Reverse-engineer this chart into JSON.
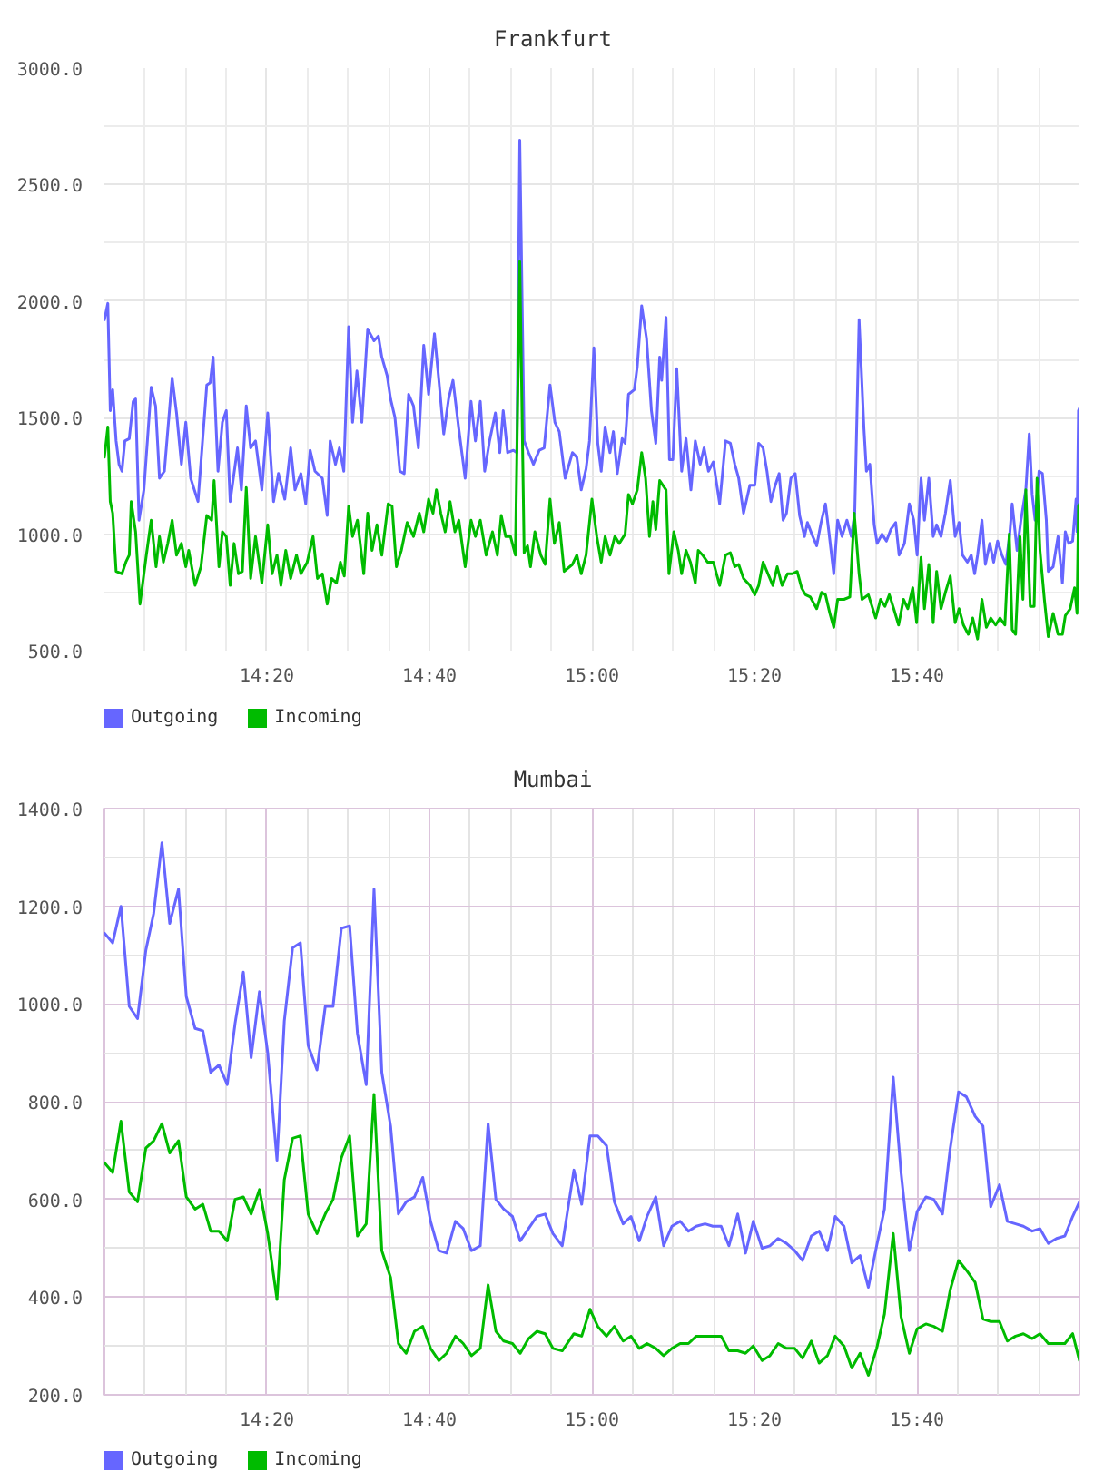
{
  "chart_data": [
    {
      "type": "line",
      "title": "Frankfurt",
      "xlim": [
        14,
        16
      ],
      "ylim": [
        500,
        3000
      ],
      "grid": true,
      "legend": "bottom left",
      "xticks": [
        {
          "value": 14.0833,
          "label": null
        },
        {
          "value": 14.1667,
          "label": null
        },
        {
          "value": 14.25,
          "label": null
        },
        {
          "value": 14.3333,
          "label": "14:20"
        },
        {
          "value": 14.4167,
          "label": null
        },
        {
          "value": 14.5,
          "label": null
        },
        {
          "value": 14.5833,
          "label": null
        },
        {
          "value": 14.6667,
          "label": "14:40"
        },
        {
          "value": 14.75,
          "label": null
        },
        {
          "value": 14.8333,
          "label": null
        },
        {
          "value": 14.9167,
          "label": null
        },
        {
          "value": 15,
          "label": "15:00"
        },
        {
          "value": 15.0833,
          "label": null
        },
        {
          "value": 15.1667,
          "label": null
        },
        {
          "value": 15.25,
          "label": null
        },
        {
          "value": 15.3333,
          "label": "15:20"
        },
        {
          "value": 15.4167,
          "label": null
        },
        {
          "value": 15.5,
          "label": null
        },
        {
          "value": 15.5833,
          "label": null
        },
        {
          "value": 15.6667,
          "label": "15:40"
        },
        {
          "value": 15.75,
          "label": null
        },
        {
          "value": 15.8333,
          "label": null
        },
        {
          "value": 15.9167,
          "label": null
        }
      ],
      "yticks": [
        {
          "value": 500,
          "label": "500.0"
        },
        {
          "value": 750,
          "label": null
        },
        {
          "value": 1000,
          "label": "1000.0"
        },
        {
          "value": 1250,
          "label": null
        },
        {
          "value": 1500,
          "label": "1500.0"
        },
        {
          "value": 1750,
          "label": null
        },
        {
          "value": 2000,
          "label": "2000.0"
        },
        {
          "value": 2250,
          "label": null
        },
        {
          "value": 2500,
          "label": "2500.0"
        },
        {
          "value": 2750,
          "label": null
        },
        {
          "value": 3000,
          "label": "3000.0"
        }
      ],
      "series": [
        {
          "name": "Outgoing",
          "color": "#6666ff",
          "x": [
            14.0,
            14.007,
            14.012,
            14.017,
            14.024,
            14.03,
            14.036,
            14.042,
            14.051,
            14.059,
            14.064,
            14.071,
            14.081,
            14.096,
            14.105,
            14.113,
            14.123,
            14.139,
            14.148,
            14.158,
            14.167,
            14.177,
            14.192,
            14.21,
            14.217,
            14.223,
            14.233,
            14.242,
            14.25,
            14.258,
            14.273,
            14.281,
            14.291,
            14.3,
            14.31,
            14.323,
            14.335,
            14.347,
            14.357,
            14.37,
            14.382,
            14.391,
            14.403,
            14.413,
            14.422,
            14.432,
            14.447,
            14.457,
            14.463,
            14.474,
            14.482,
            14.491,
            14.501,
            14.509,
            14.518,
            14.528,
            14.54,
            14.553,
            14.562,
            14.569,
            14.58,
            14.587,
            14.596,
            14.606,
            14.615,
            14.624,
            14.634,
            14.644,
            14.655,
            14.665,
            14.677,
            14.686,
            14.696,
            14.706,
            14.715,
            14.727,
            14.74,
            14.752,
            14.761,
            14.771,
            14.78,
            14.79,
            14.802,
            14.811,
            14.818,
            14.827,
            14.839,
            14.846,
            14.852,
            14.861,
            14.87,
            14.88,
            14.892,
            14.902,
            14.914,
            14.924,
            14.933,
            14.945,
            14.96,
            14.969,
            14.978,
            14.988,
            14.995,
            15.004,
            15.012,
            15.019,
            15.027,
            15.037,
            15.044,
            15.052,
            15.062,
            15.068,
            15.075,
            15.087,
            15.093,
            15.102,
            15.112,
            15.122,
            15.131,
            15.139,
            15.143,
            15.152,
            15.159,
            15.166,
            15.174,
            15.184,
            15.193,
            15.203,
            15.212,
            15.222,
            15.23,
            15.239,
            15.249,
            15.262,
            15.274,
            15.284,
            15.293,
            15.301,
            15.311,
            15.324,
            15.334,
            15.342,
            15.351,
            15.359,
            15.367,
            15.376,
            15.384,
            15.392,
            15.399,
            15.408,
            15.417,
            15.426,
            15.436,
            15.442,
            15.451,
            15.461,
            15.47,
            15.479,
            15.486,
            15.496,
            15.504,
            15.513,
            15.523,
            15.532,
            15.539,
            15.548,
            15.558,
            15.563,
            15.57,
            15.579,
            15.585,
            15.595,
            15.604,
            15.613,
            15.623,
            15.63,
            15.641,
            15.651,
            15.66,
            15.667,
            15.675,
            15.682,
            15.691,
            15.7,
            15.707,
            15.716,
            15.725,
            15.735,
            15.745,
            15.753,
            15.76,
            15.77,
            15.778,
            15.785,
            15.791,
            15.8,
            15.807,
            15.816,
            15.824,
            15.832,
            15.841,
            15.849,
            15.857,
            15.862,
            15.872,
            15.88,
            15.89,
            15.897,
            15.903,
            15.909,
            15.917,
            15.924,
            15.932,
            15.936,
            15.946,
            15.956,
            15.965,
            15.971,
            15.978,
            15.986,
            15.993,
            15.995,
            15.998,
            16.0
          ],
          "values": [
            1920,
            1990,
            1530,
            1620,
            1400,
            1300,
            1270,
            1400,
            1410,
            1570,
            1580,
            1060,
            1190,
            1630,
            1550,
            1240,
            1270,
            1670,
            1520,
            1300,
            1480,
            1240,
            1140,
            1640,
            1650,
            1760,
            1270,
            1480,
            1530,
            1140,
            1370,
            1190,
            1550,
            1370,
            1400,
            1190,
            1520,
            1140,
            1260,
            1150,
            1370,
            1190,
            1260,
            1130,
            1360,
            1270,
            1240,
            1080,
            1400,
            1300,
            1370,
            1270,
            1890,
            1480,
            1700,
            1480,
            1880,
            1830,
            1850,
            1760,
            1680,
            1580,
            1500,
            1270,
            1260,
            1600,
            1550,
            1370,
            1810,
            1600,
            1860,
            1660,
            1430,
            1580,
            1660,
            1450,
            1240,
            1570,
            1400,
            1570,
            1270,
            1400,
            1520,
            1350,
            1530,
            1350,
            1360,
            1350,
            2690,
            1400,
            1350,
            1300,
            1360,
            1370,
            1640,
            1480,
            1440,
            1240,
            1350,
            1330,
            1190,
            1280,
            1400,
            1800,
            1390,
            1270,
            1460,
            1350,
            1440,
            1260,
            1410,
            1390,
            1600,
            1620,
            1720,
            1980,
            1840,
            1530,
            1390,
            1760,
            1660,
            1930,
            1320,
            1320,
            1710,
            1270,
            1410,
            1190,
            1400,
            1300,
            1370,
            1270,
            1310,
            1130,
            1400,
            1390,
            1300,
            1240,
            1090,
            1210,
            1210,
            1390,
            1370,
            1270,
            1140,
            1210,
            1260,
            1060,
            1090,
            1240,
            1260,
            1080,
            990,
            1050,
            1000,
            950,
            1050,
            1130,
            1010,
            830,
            1060,
            990,
            1060,
            990,
            1090,
            1920,
            1450,
            1270,
            1300,
            1040,
            960,
            1000,
            970,
            1020,
            1050,
            910,
            960,
            1130,
            1060,
            910,
            1240,
            1060,
            1240,
            990,
            1040,
            990,
            1090,
            1230,
            990,
            1050,
            910,
            880,
            910,
            830,
            910,
            1060,
            870,
            960,
            880,
            970,
            910,
            870,
            1000,
            1130,
            930,
            1060,
            1190,
            1430,
            1170,
            1060,
            1270,
            1260,
            1060,
            840,
            860,
            990,
            790,
            1010,
            960,
            970,
            1150,
            1010,
            1530,
            1540
          ]
        },
        {
          "name": "Incoming",
          "color": "#00bb00",
          "x": [
            14.0,
            14.007,
            14.012,
            14.017,
            14.024,
            14.036,
            14.044,
            14.051,
            14.055,
            14.064,
            14.073,
            14.086,
            14.096,
            14.106,
            14.113,
            14.121,
            14.13,
            14.139,
            14.148,
            14.158,
            14.167,
            14.173,
            14.186,
            14.198,
            14.21,
            14.22,
            14.225,
            14.235,
            14.242,
            14.25,
            14.258,
            14.266,
            14.275,
            14.283,
            14.291,
            14.3,
            14.31,
            14.323,
            14.335,
            14.344,
            14.354,
            14.362,
            14.372,
            14.382,
            14.394,
            14.403,
            14.416,
            14.428,
            14.437,
            14.447,
            14.457,
            14.466,
            14.476,
            14.484,
            14.492,
            14.501,
            14.509,
            14.519,
            14.532,
            14.54,
            14.549,
            14.559,
            14.569,
            14.582,
            14.59,
            14.599,
            14.609,
            14.621,
            14.634,
            14.646,
            14.655,
            14.665,
            14.674,
            14.681,
            14.69,
            14.699,
            14.709,
            14.719,
            14.727,
            14.74,
            14.752,
            14.761,
            14.771,
            14.783,
            14.796,
            14.806,
            14.814,
            14.823,
            14.833,
            14.843,
            14.852,
            14.861,
            14.868,
            14.874,
            14.883,
            14.895,
            14.904,
            14.914,
            14.923,
            14.933,
            14.943,
            14.96,
            14.969,
            14.978,
            14.988,
            15.0,
            15.01,
            15.019,
            15.027,
            15.037,
            15.047,
            15.056,
            15.068,
            15.075,
            15.083,
            15.093,
            15.102,
            15.11,
            15.118,
            15.125,
            15.131,
            15.139,
            15.152,
            15.158,
            15.168,
            15.177,
            15.184,
            15.193,
            15.202,
            15.212,
            15.218,
            15.227,
            15.237,
            15.249,
            15.262,
            15.274,
            15.284,
            15.293,
            15.301,
            15.311,
            15.324,
            15.334,
            15.342,
            15.351,
            15.361,
            15.371,
            15.38,
            15.39,
            15.401,
            15.411,
            15.421,
            15.43,
            15.438,
            15.448,
            15.461,
            15.471,
            15.479,
            15.488,
            15.496,
            15.504,
            15.517,
            15.529,
            15.538,
            15.548,
            15.554,
            15.567,
            15.573,
            15.582,
            15.592,
            15.601,
            15.61,
            15.619,
            15.629,
            15.639,
            15.648,
            15.658,
            15.666,
            15.675,
            15.682,
            15.691,
            15.7,
            15.707,
            15.716,
            15.725,
            15.735,
            15.745,
            15.753,
            15.762,
            15.772,
            15.781,
            15.791,
            15.8,
            15.809,
            15.818,
            15.828,
            15.837,
            15.847,
            15.856,
            15.862,
            15.869,
            15.878,
            15.884,
            15.89,
            15.899,
            15.907,
            15.913,
            15.919,
            15.928,
            15.936,
            15.946,
            15.956,
            15.965,
            15.971,
            15.981,
            15.99,
            15.995,
            15.998,
            16.0
          ],
          "values": [
            1330,
            1460,
            1140,
            1090,
            840,
            830,
            880,
            910,
            1140,
            1010,
            700,
            910,
            1060,
            860,
            990,
            880,
            960,
            1060,
            910,
            960,
            860,
            930,
            780,
            860,
            1080,
            1060,
            1230,
            860,
            1010,
            990,
            780,
            960,
            830,
            840,
            1200,
            810,
            990,
            790,
            1040,
            830,
            910,
            780,
            930,
            810,
            910,
            830,
            880,
            990,
            810,
            830,
            700,
            810,
            790,
            880,
            820,
            1120,
            990,
            1060,
            830,
            1090,
            930,
            1040,
            910,
            1130,
            1120,
            860,
            930,
            1050,
            990,
            1090,
            1010,
            1150,
            1090,
            1190,
            1090,
            1010,
            1140,
            1010,
            1060,
            860,
            1060,
            990,
            1060,
            910,
            1010,
            910,
            1080,
            990,
            990,
            910,
            2170,
            920,
            950,
            860,
            1010,
            910,
            870,
            1150,
            960,
            1050,
            840,
            870,
            910,
            830,
            910,
            1150,
            990,
            880,
            990,
            910,
            990,
            960,
            1000,
            1170,
            1130,
            1190,
            1350,
            1240,
            990,
            1140,
            1020,
            1230,
            1190,
            830,
            1010,
            930,
            830,
            930,
            880,
            790,
            930,
            910,
            880,
            880,
            780,
            910,
            920,
            860,
            870,
            810,
            780,
            740,
            780,
            880,
            830,
            780,
            860,
            780,
            830,
            830,
            840,
            770,
            740,
            730,
            680,
            750,
            740,
            660,
            600,
            720,
            720,
            730,
            1090,
            830,
            720,
            740,
            700,
            640,
            720,
            690,
            740,
            680,
            610,
            720,
            680,
            770,
            620,
            900,
            680,
            870,
            620,
            840,
            680,
            750,
            820,
            620,
            680,
            610,
            570,
            640,
            550,
            720,
            600,
            640,
            610,
            640,
            610,
            1000,
            590,
            570,
            990,
            720,
            1190,
            690,
            690,
            1240,
            930,
            720,
            560,
            660,
            570,
            570,
            650,
            680,
            770,
            660,
            1120,
            1130
          ]
        }
      ]
    },
    {
      "type": "line",
      "title": "Mumbai",
      "xlim": [
        14,
        16
      ],
      "ylim": [
        200,
        1400
      ],
      "grid": true,
      "legend": "bottom left",
      "xticks": [
        {
          "value": 14.0833,
          "label": null
        },
        {
          "value": 14.1667,
          "label": null
        },
        {
          "value": 14.25,
          "label": null
        },
        {
          "value": 14.3333,
          "label": "14:20"
        },
        {
          "value": 14.4167,
          "label": null
        },
        {
          "value": 14.5,
          "label": null
        },
        {
          "value": 14.5833,
          "label": null
        },
        {
          "value": 14.6667,
          "label": "14:40"
        },
        {
          "value": 14.75,
          "label": null
        },
        {
          "value": 14.8333,
          "label": null
        },
        {
          "value": 14.9167,
          "label": null
        },
        {
          "value": 15,
          "label": "15:00"
        },
        {
          "value": 15.0833,
          "label": null
        },
        {
          "value": 15.1667,
          "label": null
        },
        {
          "value": 15.25,
          "label": null
        },
        {
          "value": 15.3333,
          "label": "15:20"
        },
        {
          "value": 15.4167,
          "label": null
        },
        {
          "value": 15.5,
          "label": null
        },
        {
          "value": 15.5833,
          "label": null
        },
        {
          "value": 15.6667,
          "label": "15:40"
        },
        {
          "value": 15.75,
          "label": null
        },
        {
          "value": 15.8333,
          "label": null
        },
        {
          "value": 15.9167,
          "label": null
        }
      ],
      "yticks": [
        {
          "value": 200,
          "label": "200.0"
        },
        {
          "value": 300,
          "label": null
        },
        {
          "value": 400,
          "label": "400.0"
        },
        {
          "value": 500,
          "label": null
        },
        {
          "value": 600,
          "label": "600.0"
        },
        {
          "value": 700,
          "label": null
        },
        {
          "value": 800,
          "label": "800.0"
        },
        {
          "value": 900,
          "label": null
        },
        {
          "value": 1000,
          "label": "1000.0"
        },
        {
          "value": 1100,
          "label": null
        },
        {
          "value": 1200,
          "label": "1200.0"
        },
        {
          "value": 1300,
          "label": null
        },
        {
          "value": 1400,
          "label": "1400.0"
        }
      ],
      "x": [
        14.0,
        14.017,
        14.034,
        14.051,
        14.068,
        14.085,
        14.101,
        14.118,
        14.134,
        14.152,
        14.168,
        14.186,
        14.202,
        14.218,
        14.235,
        14.252,
        14.268,
        14.285,
        14.301,
        14.318,
        14.335,
        14.354,
        14.369,
        14.386,
        14.402,
        14.418,
        14.436,
        14.453,
        14.469,
        14.486,
        14.503,
        14.519,
        14.537,
        14.553,
        14.569,
        14.587,
        14.603,
        14.619,
        14.636,
        14.653,
        14.669,
        14.686,
        14.702,
        14.72,
        14.736,
        14.753,
        14.771,
        14.787,
        14.803,
        14.819,
        14.837,
        14.853,
        14.87,
        14.887,
        14.904,
        14.92,
        14.939,
        14.963,
        14.979,
        14.996,
        15.012,
        15.03,
        15.046,
        15.064,
        15.08,
        15.097,
        15.113,
        15.131,
        15.147,
        15.164,
        15.181,
        15.198,
        15.214,
        15.232,
        15.248,
        15.265,
        15.281,
        15.299,
        15.315,
        15.331,
        15.349,
        15.365,
        15.382,
        15.399,
        15.416,
        15.432,
        15.45,
        15.466,
        15.483,
        15.499,
        15.517,
        15.533,
        15.55,
        15.567,
        15.584,
        15.6,
        15.618,
        15.634,
        15.651,
        15.667,
        15.685,
        15.701,
        15.719,
        15.735,
        15.752,
        15.768,
        15.786,
        15.802,
        15.818,
        15.836,
        15.852,
        15.869,
        15.885,
        15.903,
        15.919,
        15.936,
        15.953,
        15.97,
        15.986,
        16.0
      ],
      "series": [
        {
          "name": "Outgoing",
          "color": "#6666ff",
          "values": [
            1145,
            1125,
            1200,
            995,
            970,
            1110,
            1185,
            1330,
            1165,
            1235,
            1015,
            950,
            945,
            860,
            875,
            835,
            960,
            1065,
            890,
            1025,
            900,
            680,
            965,
            1115,
            1125,
            915,
            865,
            995,
            995,
            1155,
            1160,
            940,
            835,
            1235,
            860,
            750,
            570,
            595,
            605,
            645,
            555,
            495,
            490,
            555,
            540,
            495,
            505,
            755,
            600,
            580,
            565,
            515,
            540,
            565,
            570,
            530,
            505,
            660,
            590,
            730,
            730,
            710,
            595,
            550,
            565,
            515,
            565,
            605,
            505,
            545,
            555,
            535,
            545,
            550,
            545,
            545,
            505,
            570,
            490,
            555,
            500,
            505,
            520,
            510,
            495,
            475,
            525,
            535,
            495,
            565,
            545,
            470,
            485,
            420,
            505,
            580,
            850,
            655,
            495,
            575,
            605,
            600,
            570,
            705,
            820,
            810,
            770,
            750,
            585,
            630,
            555,
            550,
            545,
            535,
            540,
            510,
            520,
            525,
            565,
            595
          ]
        },
        {
          "name": "Incoming",
          "color": "#00bb00",
          "values": [
            675,
            655,
            760,
            615,
            595,
            705,
            720,
            755,
            695,
            720,
            605,
            580,
            590,
            535,
            535,
            515,
            600,
            605,
            570,
            620,
            530,
            395,
            640,
            725,
            730,
            570,
            530,
            570,
            600,
            685,
            730,
            525,
            550,
            815,
            495,
            440,
            305,
            285,
            330,
            340,
            295,
            270,
            285,
            320,
            305,
            280,
            295,
            425,
            330,
            310,
            305,
            285,
            315,
            330,
            325,
            295,
            290,
            325,
            320,
            375,
            340,
            320,
            340,
            310,
            320,
            295,
            305,
            295,
            280,
            295,
            305,
            305,
            320,
            320,
            320,
            320,
            290,
            290,
            285,
            300,
            270,
            280,
            305,
            295,
            295,
            275,
            310,
            265,
            280,
            320,
            300,
            255,
            285,
            240,
            295,
            365,
            530,
            360,
            285,
            335,
            345,
            340,
            330,
            415,
            475,
            455,
            430,
            355,
            350,
            350,
            310,
            320,
            325,
            315,
            325,
            305,
            305,
            305,
            325,
            270
          ]
        }
      ]
    }
  ]
}
